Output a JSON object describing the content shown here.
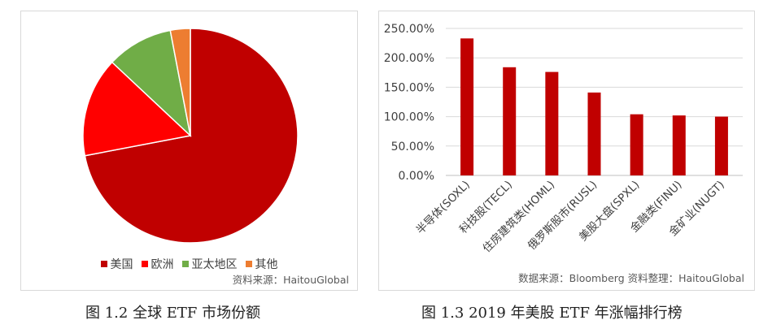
{
  "pie_chart": {
    "source": "资料来源：HaitouGlobal",
    "caption": "图  1.2    全球 ETF 市场份额"
  },
  "bar_chart": {
    "source": "数据来源：Bloomberg 资料整理：HaitouGlobal",
    "caption": "图  1.3    2019 年美股 ETF 年涨幅排行榜",
    "y_ticks": [
      "0.00%",
      "50.00%",
      "100.00%",
      "150.00%",
      "200.00%",
      "250.00%"
    ]
  },
  "chart_data": [
    {
      "type": "pie",
      "title": "",
      "labels": [
        "美国",
        "欧洲",
        "亚太地区",
        "其他"
      ],
      "values": [
        72,
        15,
        10,
        3
      ],
      "colors": [
        "#c00000",
        "#ff0000",
        "#70ad47",
        "#ed7d31"
      ],
      "legend_position": "bottom"
    },
    {
      "type": "bar",
      "title": "",
      "categories": [
        "半导体(SOXL)",
        "科技股(TECL)",
        "住房建筑类(HOML)",
        "俄罗斯股市(RUSL)",
        "美股大盘(SPXL)",
        "金融类(FINU)",
        "金矿业(NUGT)"
      ],
      "values": [
        233,
        184,
        176,
        141,
        104,
        102,
        100
      ],
      "ylim": [
        0,
        250
      ],
      "ylabel": "",
      "xlabel": "",
      "grid": true,
      "color": "#c00000"
    }
  ]
}
